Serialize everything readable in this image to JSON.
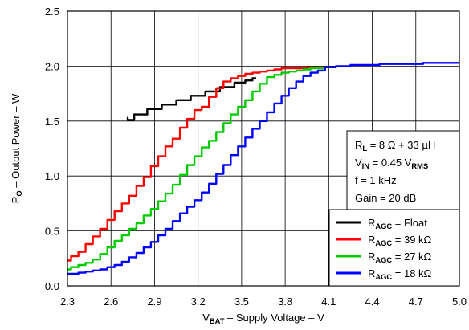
{
  "chart_data": {
    "type": "line",
    "xlabel": {
      "main": "V",
      "sub": "BAT",
      "rest": " – Supply Voltage – V"
    },
    "ylabel": {
      "main": "P",
      "sub": "O",
      "rest": " – Output Power – W"
    },
    "xlim": [
      2.3,
      5.0
    ],
    "ylim": [
      0.0,
      2.5
    ],
    "xticks": [
      "2.3",
      "2.6",
      "2.9",
      "3.2",
      "3.5",
      "3.8",
      "4.1",
      "4.4",
      "4.7",
      "5.0"
    ],
    "yticks": [
      "0.0",
      "0.5",
      "1.0",
      "1.5",
      "2.0",
      "2.5"
    ],
    "grid": true,
    "legend_position": "bottom-right",
    "conditions": [
      {
        "main": "R",
        "sub": "L",
        "rest": " = 8 Ω + 33 µH"
      },
      {
        "main": "V",
        "sub": "IN",
        "rest": " = 0.45 V",
        "sub2": "RMS"
      },
      {
        "main": "f = 1 kHz",
        "sub": "",
        "rest": ""
      },
      {
        "main": "Gain = 20 dB",
        "sub": "",
        "rest": ""
      }
    ],
    "series": [
      {
        "name": "R_AGC = Float",
        "legend": {
          "main": "R",
          "sub": "AGC",
          "rest": " = Float"
        },
        "color": "#000000",
        "x": [
          2.71,
          2.72,
          2.8,
          2.9,
          3.0,
          3.1,
          3.2,
          3.3,
          3.4,
          3.5,
          3.55,
          3.6
        ],
        "y": [
          1.53,
          1.51,
          1.56,
          1.61,
          1.65,
          1.69,
          1.73,
          1.77,
          1.81,
          1.85,
          1.87,
          1.89
        ]
      },
      {
        "name": "R_AGC = 39 kΩ",
        "legend": {
          "main": "R",
          "sub": "AGC",
          "rest": " = 39 kΩ"
        },
        "color": "#ff0000",
        "x": [
          2.3,
          2.35,
          2.4,
          2.45,
          2.5,
          2.55,
          2.6,
          2.65,
          2.7,
          2.75,
          2.8,
          2.85,
          2.9,
          2.95,
          3.0,
          3.05,
          3.1,
          3.15,
          3.2,
          3.25,
          3.3,
          3.35,
          3.4,
          3.45,
          3.5,
          3.55,
          3.6,
          3.65,
          3.7,
          3.75,
          3.8,
          3.9,
          4.0,
          4.1
        ],
        "y": [
          0.23,
          0.27,
          0.31,
          0.38,
          0.45,
          0.52,
          0.6,
          0.68,
          0.75,
          0.82,
          0.91,
          0.99,
          1.09,
          1.18,
          1.27,
          1.34,
          1.44,
          1.52,
          1.6,
          1.63,
          1.72,
          1.8,
          1.86,
          1.89,
          1.91,
          1.93,
          1.94,
          1.95,
          1.96,
          1.97,
          1.98,
          1.98,
          1.99,
          1.99
        ]
      },
      {
        "name": "R_AGC = 27 kΩ",
        "legend": {
          "main": "R",
          "sub": "AGC",
          "rest": " = 27 kΩ"
        },
        "color": "#00cc00",
        "x": [
          2.3,
          2.35,
          2.4,
          2.45,
          2.5,
          2.55,
          2.6,
          2.65,
          2.7,
          2.75,
          2.8,
          2.85,
          2.9,
          2.95,
          3.0,
          3.05,
          3.1,
          3.15,
          3.2,
          3.25,
          3.3,
          3.35,
          3.4,
          3.45,
          3.5,
          3.55,
          3.6,
          3.65,
          3.7,
          3.75,
          3.8,
          3.85,
          3.9,
          3.95,
          4.0,
          4.05,
          4.1
        ],
        "y": [
          0.15,
          0.17,
          0.19,
          0.21,
          0.24,
          0.29,
          0.35,
          0.41,
          0.46,
          0.52,
          0.57,
          0.64,
          0.7,
          0.77,
          0.84,
          0.92,
          1.01,
          1.1,
          1.18,
          1.26,
          1.32,
          1.4,
          1.48,
          1.56,
          1.63,
          1.69,
          1.77,
          1.84,
          1.9,
          1.92,
          1.94,
          1.95,
          1.96,
          1.97,
          1.98,
          1.98,
          1.99
        ]
      },
      {
        "name": "R_AGC = 18 kΩ",
        "legend": {
          "main": "R",
          "sub": "AGC",
          "rest": " = 18 kΩ"
        },
        "color": "#0000ff",
        "x": [
          2.3,
          2.35,
          2.4,
          2.45,
          2.5,
          2.55,
          2.6,
          2.65,
          2.7,
          2.75,
          2.8,
          2.85,
          2.9,
          2.95,
          3.0,
          3.05,
          3.1,
          3.15,
          3.2,
          3.25,
          3.3,
          3.35,
          3.4,
          3.45,
          3.5,
          3.55,
          3.6,
          3.65,
          3.7,
          3.75,
          3.8,
          3.85,
          3.9,
          3.95,
          4.0,
          4.05,
          4.1,
          4.2,
          4.3,
          4.4,
          4.5,
          4.6,
          4.7,
          4.8,
          4.9,
          5.0
        ],
        "y": [
          0.11,
          0.11,
          0.12,
          0.13,
          0.14,
          0.15,
          0.17,
          0.19,
          0.22,
          0.26,
          0.3,
          0.35,
          0.4,
          0.46,
          0.52,
          0.59,
          0.66,
          0.72,
          0.78,
          0.85,
          0.93,
          1.02,
          1.1,
          1.19,
          1.27,
          1.35,
          1.43,
          1.5,
          1.58,
          1.66,
          1.73,
          1.8,
          1.86,
          1.91,
          1.94,
          1.96,
          1.99,
          2.0,
          2.01,
          2.01,
          2.02,
          2.02,
          2.02,
          2.03,
          2.03,
          2.03
        ]
      }
    ]
  }
}
